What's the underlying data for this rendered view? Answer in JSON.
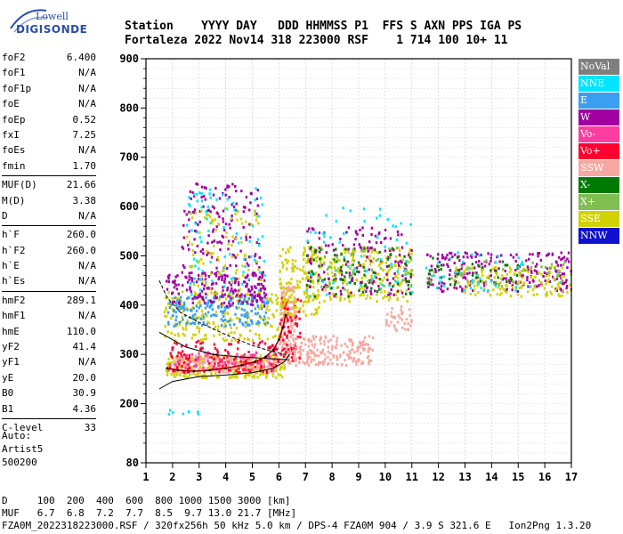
{
  "logo": {
    "line1": "Lowell",
    "line2": "DIGISONDE"
  },
  "header": {
    "line1": "Station    YYYY DAY   DDD HHMMSS P1  FFS S AXN PPS IGA PS",
    "line2": "Fortaleza 2022 Nov14 318 223000 RSF    1 714 100 10+ 11"
  },
  "params": {
    "group1": [
      {
        "name": "foF2",
        "value": "6.400"
      },
      {
        "name": "foF1",
        "value": "N/A"
      },
      {
        "name": "foF1p",
        "value": "N/A"
      },
      {
        "name": "foE",
        "value": "N/A"
      },
      {
        "name": "foEp",
        "value": "0.52"
      },
      {
        "name": "fxI",
        "value": "7.25"
      },
      {
        "name": "foEs",
        "value": "N/A"
      },
      {
        "name": "fmin",
        "value": "1.70"
      }
    ],
    "group2": [
      {
        "name": "MUF(D)",
        "value": "21.66"
      },
      {
        "name": "M(D)",
        "value": "3.38"
      },
      {
        "name": "D",
        "value": "N/A"
      }
    ],
    "group3": [
      {
        "name": "h`F",
        "value": "260.0"
      },
      {
        "name": "h`F2",
        "value": "260.0"
      },
      {
        "name": "h`E",
        "value": "N/A"
      },
      {
        "name": "h`Es",
        "value": "N/A"
      }
    ],
    "group4": [
      {
        "name": "hmF2",
        "value": "289.1"
      },
      {
        "name": "hmF1",
        "value": "N/A"
      },
      {
        "name": "hmE",
        "value": "110.0"
      },
      {
        "name": "yF2",
        "value": "41.4"
      },
      {
        "name": "yF1",
        "value": "N/A"
      },
      {
        "name": "yE",
        "value": "20.0"
      },
      {
        "name": "B0",
        "value": "30.9"
      },
      {
        "name": "B1",
        "value": "4.36"
      }
    ],
    "group5": [
      {
        "name": "C-level",
        "value": "33"
      }
    ]
  },
  "auto": {
    "line1": "Auto:",
    "line2": "Artist5",
    "line3": "500200"
  },
  "legend": [
    {
      "label": "NoVal",
      "color": "#7f7f7f"
    },
    {
      "label": "NNE",
      "color": "#00e5ff"
    },
    {
      "label": "E",
      "color": "#3a9ff0"
    },
    {
      "label": "W",
      "color": "#a0009f"
    },
    {
      "label": "Vo-",
      "color": "#ff3ca0"
    },
    {
      "label": "Vo+",
      "color": "#ff0030"
    },
    {
      "label": "SSW",
      "color": "#f6a8a0"
    },
    {
      "label": "X-",
      "color": "#007a00"
    },
    {
      "label": "X+",
      "color": "#7fbe50"
    },
    {
      "label": "SSE",
      "color": "#d2d200"
    },
    {
      "label": "NNW",
      "color": "#1010d0"
    }
  ],
  "footer": {
    "line1": "D     100  200  400  600  800 1000 1500 3000 [km]",
    "line2": "MUF   6.7  6.8  7.2  7.7  8.5  9.7 13.0 21.7 [MHz]",
    "line3": "FZA0M_2022318223000.RSF / 320fx256h 50 kHz 5.0 km / DPS-4 FZA0M 904 / 3.9 S 321.6 E   Ion2Png 1.3.20"
  },
  "chart_data": {
    "type": "scatter",
    "xlim": [
      1,
      17
    ],
    "ylim": [
      80,
      900
    ],
    "x_ticks": [
      1,
      2,
      3,
      4,
      5,
      6,
      7,
      8,
      9,
      10,
      11,
      12,
      13,
      14,
      15,
      16,
      17
    ],
    "y_ticks": [
      80,
      200,
      300,
      400,
      500,
      600,
      700,
      800,
      900
    ],
    "grid": true,
    "legend_position": "right",
    "traces": [
      {
        "name": "o-trace",
        "color": "#a00000",
        "x": [
          1.8,
          2.2,
          2.8,
          3.4,
          4.0,
          4.6,
          5.1,
          5.5,
          5.8,
          6.0,
          6.15,
          6.25
        ],
        "y": [
          272,
          268,
          266,
          268,
          272,
          278,
          285,
          295,
          310,
          330,
          355,
          380
        ]
      }
    ],
    "profile": [
      {
        "x": [
          1.5,
          2.0,
          3.0,
          4.0,
          5.0,
          5.8,
          6.2,
          6.4
        ],
        "y": [
          230,
          245,
          255,
          258,
          263,
          272,
          285,
          300
        ]
      },
      {
        "x": [
          1.5,
          2.5,
          3.5,
          4.5,
          5.5,
          6.4
        ],
        "y": [
          345,
          315,
          300,
          295,
          292,
          289
        ]
      },
      {
        "x": [
          1.5,
          1.8,
          2.3,
          3.0,
          4.0,
          5.0,
          5.8,
          6.4
        ],
        "y": [
          450,
          415,
          385,
          365,
          340,
          318,
          305,
          298
        ]
      }
    ],
    "clusters": [
      {
        "c": 9,
        "x": [
          1.7,
          6.2
        ],
        "y": [
          255,
          300
        ],
        "n": 300
      },
      {
        "c": 6,
        "x": [
          2.0,
          6.0
        ],
        "y": [
          265,
          300
        ],
        "n": 240
      },
      {
        "c": 5,
        "x": [
          1.8,
          6.0
        ],
        "y": [
          265,
          330
        ],
        "n": 140
      },
      {
        "c": 4,
        "x": [
          1.8,
          5.8
        ],
        "y": [
          270,
          310
        ],
        "n": 80
      },
      {
        "c": 9,
        "x": [
          1.6,
          6.0
        ],
        "y": [
          330,
          430
        ],
        "n": 220
      },
      {
        "c": 2,
        "x": [
          1.8,
          5.6
        ],
        "y": [
          360,
          420
        ],
        "n": 180
      },
      {
        "c": 3,
        "x": [
          1.7,
          5.5
        ],
        "y": [
          400,
          470
        ],
        "n": 160
      },
      {
        "c": 3,
        "x": [
          2.3,
          5.3
        ],
        "y": [
          420,
          650
        ],
        "n": 180
      },
      {
        "c": 1,
        "x": [
          2.5,
          5.5
        ],
        "y": [
          420,
          640
        ],
        "n": 90
      },
      {
        "c": 9,
        "x": [
          2.5,
          5.3
        ],
        "y": [
          420,
          600
        ],
        "n": 90
      },
      {
        "c": 6,
        "x": [
          6.0,
          6.6
        ],
        "y": [
          280,
          440
        ],
        "n": 160
      },
      {
        "c": 5,
        "x": [
          6.0,
          6.8
        ],
        "y": [
          290,
          420
        ],
        "n": 70
      },
      {
        "c": 9,
        "x": [
          6.0,
          7.5
        ],
        "y": [
          380,
          520
        ],
        "n": 150
      },
      {
        "c": 6,
        "x": [
          6.5,
          9.5
        ],
        "y": [
          280,
          340
        ],
        "n": 180
      },
      {
        "c": 9,
        "x": [
          7.0,
          11.0
        ],
        "y": [
          410,
          520
        ],
        "n": 240
      },
      {
        "c": 3,
        "x": [
          7.0,
          11.0
        ],
        "y": [
          420,
          560
        ],
        "n": 150
      },
      {
        "c": 1,
        "x": [
          7.0,
          11.0
        ],
        "y": [
          420,
          600
        ],
        "n": 60
      },
      {
        "c": 7,
        "x": [
          7.0,
          11.0
        ],
        "y": [
          420,
          520
        ],
        "n": 70
      },
      {
        "c": 8,
        "x": [
          7.5,
          11.0
        ],
        "y": [
          430,
          520
        ],
        "n": 50
      },
      {
        "c": 6,
        "x": [
          10.0,
          11.0
        ],
        "y": [
          350,
          400
        ],
        "n": 40
      },
      {
        "c": 3,
        "x": [
          11.5,
          17.0
        ],
        "y": [
          430,
          510
        ],
        "n": 220
      },
      {
        "c": 9,
        "x": [
          12.5,
          17.0
        ],
        "y": [
          420,
          480
        ],
        "n": 150
      },
      {
        "c": 7,
        "x": [
          11.5,
          15.0
        ],
        "y": [
          440,
          500
        ],
        "n": 40
      },
      {
        "c": 1,
        "x": [
          11.5,
          17.0
        ],
        "y": [
          430,
          510
        ],
        "n": 40
      },
      {
        "c": 8,
        "x": [
          11.5,
          17.0
        ],
        "y": [
          440,
          500
        ],
        "n": 40
      },
      {
        "c": 1,
        "x": [
          1.8,
          3.0
        ],
        "y": [
          180,
          190
        ],
        "n": 8
      }
    ]
  }
}
